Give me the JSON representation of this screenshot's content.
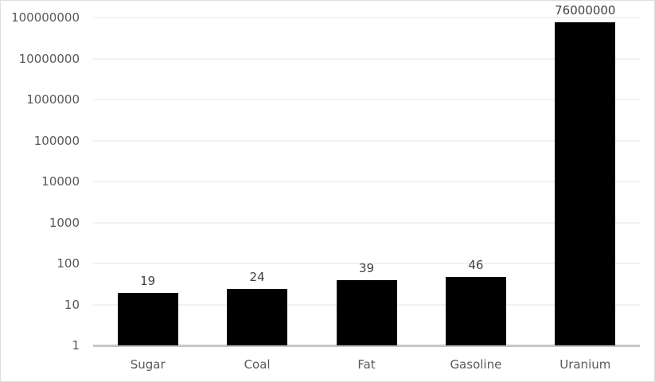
{
  "chart_data": {
    "type": "bar",
    "categories": [
      "Sugar",
      "Coal",
      "Fat",
      "Gasoline",
      "Uranium"
    ],
    "values": [
      19,
      24,
      39,
      46,
      76000000
    ],
    "value_labels": [
      "19",
      "24",
      "39",
      "46",
      "76000000"
    ],
    "title": "",
    "xlabel": "",
    "ylabel": "",
    "yscale": "log",
    "ylim": [
      1,
      100000000
    ],
    "yticks": [
      1,
      10,
      100,
      1000,
      10000,
      100000,
      1000000,
      10000000,
      100000000
    ],
    "ytick_labels": [
      "1",
      "10",
      "100",
      "1000",
      "10000",
      "100000",
      "1000000",
      "10000000",
      "100000000"
    ],
    "grid": true,
    "legend": false,
    "colors": {
      "bar": "#000000",
      "gridline": "#f2f2f2",
      "axis_line": "#c6c6c6",
      "tick_label": "#595959",
      "value_label": "#404040",
      "background": "#ffffff",
      "border": "#dedede"
    }
  }
}
